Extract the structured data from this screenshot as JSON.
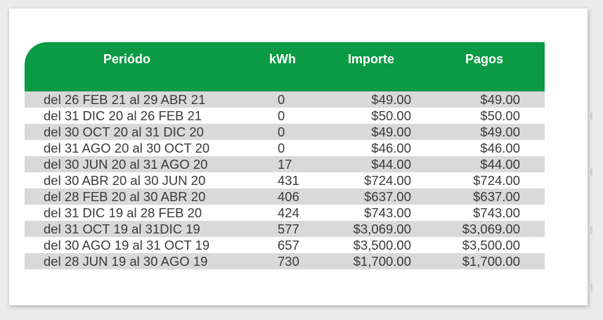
{
  "colors": {
    "header_bg": "#0c9a44",
    "row_shaded": "#d9d9d9",
    "row_plain": "#ffffff"
  },
  "table": {
    "headers": {
      "periodo": "Periódo",
      "kwh": "kWh",
      "importe": "Importe",
      "pagos": "Pagos"
    },
    "rows": [
      {
        "periodo": "del 26 FEB 21 al 29 ABR 21",
        "kwh": "0",
        "importe": "$49.00",
        "pagos": "$49.00"
      },
      {
        "periodo": "del 31 DIC 20 al 26 FEB 21",
        "kwh": "0",
        "importe": "$50.00",
        "pagos": "$50.00"
      },
      {
        "periodo": "del 30 OCT 20 al 31 DIC 20",
        "kwh": "0",
        "importe": "$49.00",
        "pagos": "$49.00"
      },
      {
        "periodo": "del 31 AGO 20 al 30 OCT 20",
        "kwh": "0",
        "importe": "$46.00",
        "pagos": "$46.00"
      },
      {
        "periodo": "del 30 JUN 20 al 31 AGO 20",
        "kwh": "17",
        "importe": "$44.00",
        "pagos": "$44.00"
      },
      {
        "periodo": "del 30 ABR 20 al 30 JUN 20",
        "kwh": "431",
        "importe": "$724.00",
        "pagos": "$724.00"
      },
      {
        "periodo": "del 28 FEB 20 al 30 ABR 20",
        "kwh": "406",
        "importe": "$637.00",
        "pagos": "$637.00"
      },
      {
        "periodo": "del 31 DIC 19 al 28 FEB 20",
        "kwh": "424",
        "importe": "$743.00",
        "pagos": "$743.00"
      },
      {
        "periodo": "del 31 OCT 19 al 31DIC 19",
        "kwh": "577",
        "importe": "$3,069.00",
        "pagos": "$3,069.00"
      },
      {
        "periodo": "del 30 AGO 19 al 31 OCT 19",
        "kwh": "657",
        "importe": "$3,500.00",
        "pagos": "$3,500.00"
      },
      {
        "periodo": "del 28 JUN 19 al 30 AGO 19",
        "kwh": "730",
        "importe": "$1,700.00",
        "pagos": "$1,700.00"
      }
    ]
  }
}
